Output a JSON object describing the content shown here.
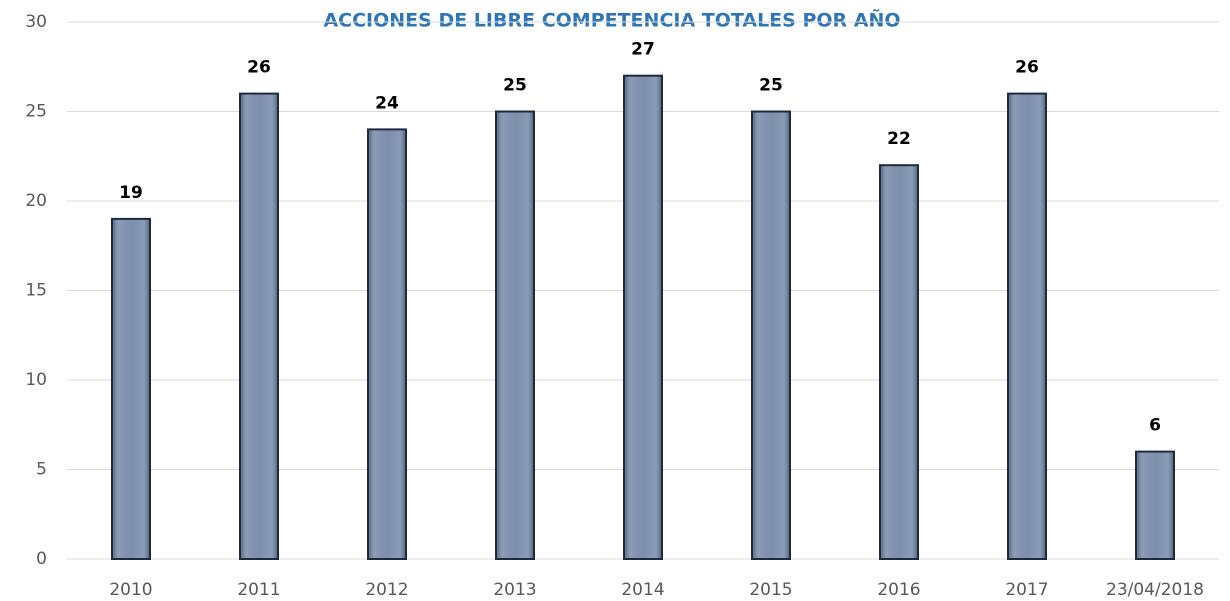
{
  "chart_data": {
    "type": "bar",
    "title": "ACCIONES DE LIBRE COMPETENCIA TOTALES POR AÑO",
    "categories": [
      "2010",
      "2011",
      "2012",
      "2013",
      "2014",
      "2015",
      "2016",
      "2017",
      "23/04/2018"
    ],
    "values": [
      19,
      26,
      24,
      25,
      27,
      25,
      22,
      26,
      6
    ],
    "color": "#7d8fab",
    "ylim": [
      0,
      30
    ],
    "yticks": [
      0,
      5,
      10,
      15,
      20,
      25,
      30
    ],
    "grid": true
  }
}
